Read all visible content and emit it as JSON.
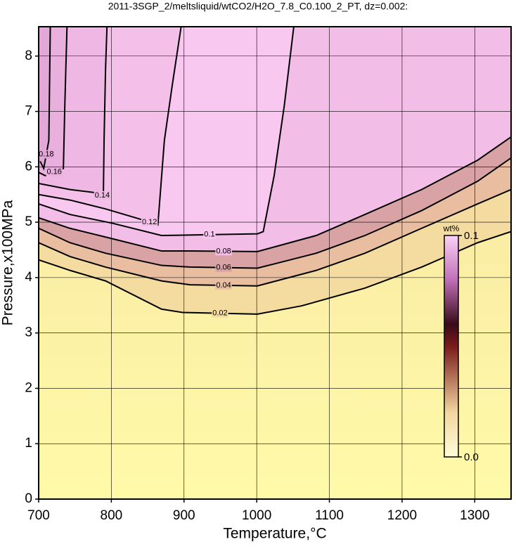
{
  "chart_data": {
    "type": "contour",
    "title": "2011-3SGP_2/meltsliquid/wtCO2/H2O_7.8_C0.100_2_PT, dz=0.002:",
    "x_label": "Temperature,°C",
    "y_label": "Pressure,x100MPa",
    "xlim": [
      700,
      1350
    ],
    "ylim": [
      0,
      8.53
    ],
    "xticks": [
      700,
      800,
      900,
      1000,
      1100,
      1200,
      1300
    ],
    "yticks": [
      0,
      1,
      2,
      3,
      4,
      5,
      6,
      7,
      8
    ],
    "grid": true,
    "contours": [
      {
        "level": 0.02,
        "color": "#f4dca0",
        "x": [
          700,
          743,
          792,
          869,
          898,
          1001,
          1062,
          1149,
          1227,
          1304,
          1350
        ],
        "y": [
          4.32,
          4.13,
          3.94,
          3.43,
          3.37,
          3.34,
          3.49,
          3.81,
          4.19,
          4.63,
          4.83
        ]
      },
      {
        "level": 0.04,
        "color": "#e9bd9f",
        "x": [
          700,
          743,
          792,
          869,
          908,
          1001,
          1082,
          1149,
          1227,
          1304,
          1350
        ],
        "y": [
          4.63,
          4.38,
          4.19,
          3.94,
          3.87,
          3.85,
          4.13,
          4.44,
          4.89,
          5.33,
          5.59
        ]
      },
      {
        "level": 0.06,
        "color": "#d9a2a4",
        "x": [
          700,
          743,
          792,
          869,
          908,
          1001,
          1082,
          1149,
          1227,
          1304,
          1350
        ],
        "y": [
          4.89,
          4.63,
          4.44,
          4.22,
          4.19,
          4.17,
          4.44,
          4.76,
          5.21,
          5.74,
          6.16
        ]
      },
      {
        "level": 0.08,
        "color": "#f2bde6",
        "x": [
          700,
          743,
          802,
          869,
          908,
          1001,
          1082,
          1149,
          1227,
          1304,
          1350
        ],
        "y": [
          5.08,
          4.89,
          4.7,
          4.48,
          4.48,
          4.47,
          4.76,
          5.14,
          5.59,
          6.12,
          6.54
        ]
      },
      {
        "level": 0.1,
        "color": "#f9c8f0",
        "x": [
          700,
          743,
          802,
          869,
          1001,
          1009,
          1024,
          1038,
          1051
        ],
        "y": [
          5.33,
          5.14,
          4.98,
          4.76,
          4.79,
          4.83,
          5.84,
          7.11,
          8.53
        ]
      },
      {
        "level": 0.12,
        "color": "#f4c0ea",
        "x": [
          700,
          743,
          792,
          841,
          864,
          873,
          884,
          896
        ],
        "y": [
          5.5,
          5.4,
          5.24,
          5.05,
          4.95,
          6.48,
          7.49,
          8.53
        ]
      },
      {
        "level": 0.14,
        "color": "#efb8e4",
        "x": [
          700,
          743,
          786,
          789,
          790,
          792,
          794
        ],
        "y": [
          5.7,
          5.59,
          5.52,
          5.45,
          6.48,
          7.75,
          8.53
        ]
      },
      {
        "level": 0.16,
        "color": "#e9b0de",
        "x": [
          700,
          709,
          734,
          736,
          739
        ],
        "y": [
          5.9,
          5.84,
          5.97,
          7.11,
          8.53
        ]
      },
      {
        "level": 0.18,
        "color": "#e2a8d8",
        "x": [
          702,
          707,
          714,
          716
        ],
        "y": [
          6.1,
          5.97,
          6.48,
          8.53
        ]
      }
    ],
    "colorbar": {
      "label": "wt%",
      "lim": [
        0,
        0.1
      ],
      "ticks": [
        {
          "value": 0,
          "label": "0.0"
        },
        0.1
      ]
    }
  }
}
